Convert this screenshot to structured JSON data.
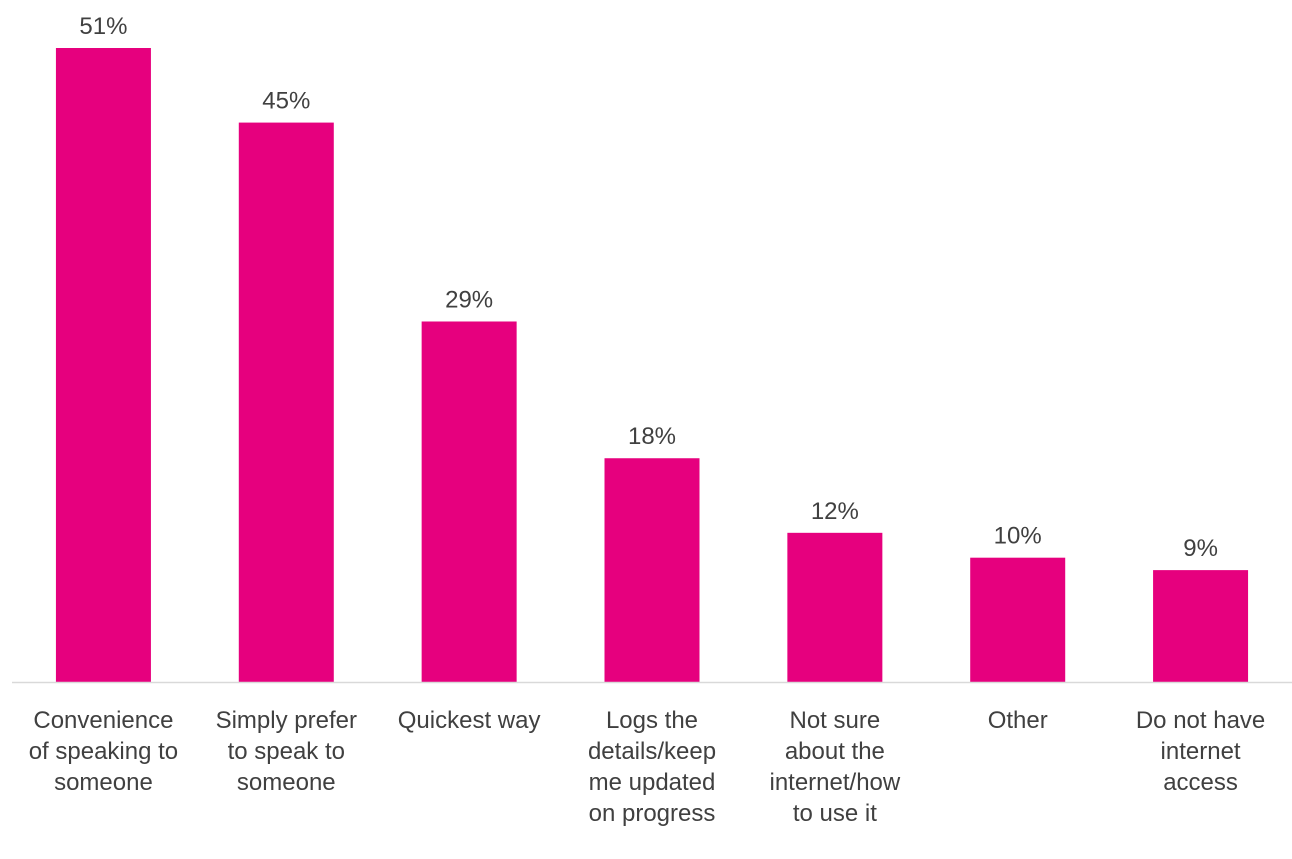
{
  "chart_data": {
    "type": "bar",
    "title": "",
    "xlabel": "",
    "ylabel": "",
    "categories": [
      [
        "Convenience",
        "of speaking to",
        "someone"
      ],
      [
        "Simply prefer",
        "to speak to",
        "someone"
      ],
      [
        "Quickest way"
      ],
      [
        "Logs the",
        "details/keep",
        "me updated",
        "on progress"
      ],
      [
        "Not sure",
        "about the",
        "internet/how",
        "to use it"
      ],
      [
        "Other"
      ],
      [
        "Do not have",
        "internet",
        "access"
      ]
    ],
    "values": [
      51,
      45,
      29,
      18,
      12,
      10,
      9
    ],
    "data_labels": [
      "51%",
      "45%",
      "29%",
      "18%",
      "12%",
      "10%",
      "9%"
    ],
    "unit": "%",
    "ylim": [
      0,
      51
    ],
    "grid": false,
    "legend": "none",
    "bar_color": "#E6007E",
    "label_color": "#404040",
    "axis_color": "#D9D9D9"
  }
}
